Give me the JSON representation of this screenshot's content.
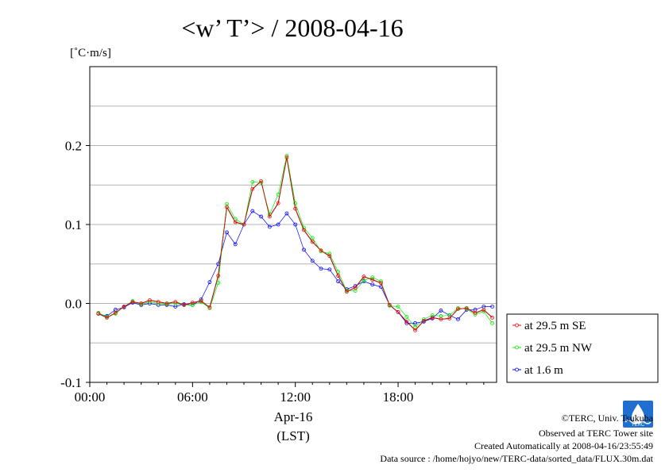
{
  "chart_data": {
    "type": "line",
    "title": "<w’ T’> / 2008-04-16",
    "ylabel": "[˚C·m/s]",
    "xlabel": "Apr-16",
    "xlabel2": "(LST)",
    "x_unit": "hour",
    "xlim": [
      0,
      23.75
    ],
    "ylim": [
      -0.1,
      0.3
    ],
    "y_ticks": [
      {
        "value": -0.1,
        "label": "-0.1"
      },
      {
        "value": 0.0,
        "label": "0.0"
      },
      {
        "value": 0.1,
        "label": "0.1"
      },
      {
        "value": 0.2,
        "label": "0.2"
      }
    ],
    "y_gridlines": [
      -0.05,
      0.0,
      0.05,
      0.1,
      0.15,
      0.2,
      0.25
    ],
    "x_ticks": [
      {
        "value": 0,
        "label": "00:00"
      },
      {
        "value": 6,
        "label": "06:00"
      },
      {
        "value": 12,
        "label": "12:00"
      },
      {
        "value": 18,
        "label": "18:00"
      }
    ],
    "grid": true,
    "legend_position": "bottom-right outside",
    "x": [
      0.5,
      1,
      1.5,
      2,
      2.5,
      3,
      3.5,
      4,
      4.5,
      5,
      5.5,
      6,
      6.5,
      7,
      7.5,
      8,
      8.5,
      9,
      9.5,
      10,
      10.5,
      11,
      11.5,
      12,
      12.5,
      13,
      13.5,
      14,
      14.5,
      15,
      15.5,
      16,
      16.5,
      17,
      17.5,
      18,
      18.5,
      19,
      19.5,
      20,
      20.5,
      21,
      21.5,
      22,
      22.5,
      23,
      23.5
    ],
    "series": [
      {
        "name": "at 29.5 m SE",
        "color": "#ff0000",
        "values": [
          -0.013,
          -0.018,
          -0.012,
          -0.004,
          0.002,
          0.0,
          0.004,
          0.002,
          0.0,
          0.002,
          -0.002,
          0.001,
          0.003,
          -0.005,
          0.035,
          0.122,
          0.103,
          0.1,
          0.145,
          0.155,
          0.11,
          0.127,
          0.185,
          0.12,
          0.093,
          0.078,
          0.067,
          0.06,
          0.035,
          0.015,
          0.02,
          0.034,
          0.03,
          0.026,
          -0.002,
          -0.011,
          -0.023,
          -0.034,
          -0.022,
          -0.018,
          -0.02,
          -0.019,
          -0.007,
          -0.006,
          -0.012,
          -0.008,
          -0.018
        ]
      },
      {
        "name": "at 29.5 m NW",
        "color": "#00ee00",
        "values": [
          -0.012,
          -0.017,
          -0.013,
          -0.004,
          0.003,
          -0.001,
          0.002,
          0.0,
          -0.001,
          0.0,
          -0.002,
          -0.002,
          0.002,
          -0.006,
          0.026,
          0.126,
          0.107,
          0.1,
          0.154,
          0.153,
          0.113,
          0.138,
          0.187,
          0.127,
          0.096,
          0.083,
          0.066,
          0.063,
          0.04,
          0.016,
          0.016,
          0.029,
          0.033,
          0.028,
          -0.003,
          -0.004,
          -0.017,
          -0.03,
          -0.02,
          -0.015,
          -0.016,
          -0.015,
          -0.006,
          -0.007,
          -0.014,
          -0.01,
          -0.025
        ]
      },
      {
        "name": "at 1.6 m",
        "color": "#0000ff",
        "values": [
          -0.013,
          -0.016,
          -0.008,
          -0.005,
          0.001,
          -0.002,
          0.0,
          -0.002,
          -0.002,
          -0.004,
          -0.001,
          -0.002,
          0.005,
          0.027,
          0.05,
          0.09,
          0.075,
          0.1,
          0.117,
          0.11,
          0.097,
          0.1,
          0.114,
          0.1,
          0.068,
          0.054,
          0.044,
          0.043,
          0.028,
          0.018,
          0.022,
          0.028,
          0.024,
          0.021,
          -0.002,
          -0.011,
          -0.025,
          -0.025,
          -0.023,
          -0.019,
          -0.009,
          -0.015,
          -0.02,
          -0.008,
          -0.008,
          -0.004,
          -0.004
        ]
      }
    ]
  },
  "legend_marker": "–◦–",
  "footer": {
    "copyright": "©TERC, Univ. Tsukuba",
    "observed": "Observed at TERC Tower site",
    "created": "Created Automatically at 2008-04-16/23:55:49",
    "source": "Data source : /home/hojyo/new/TERC-data/sorted_data/FLUX.30m.dat"
  },
  "logo": {
    "text": "TERC",
    "color": "#1f6fd0"
  }
}
